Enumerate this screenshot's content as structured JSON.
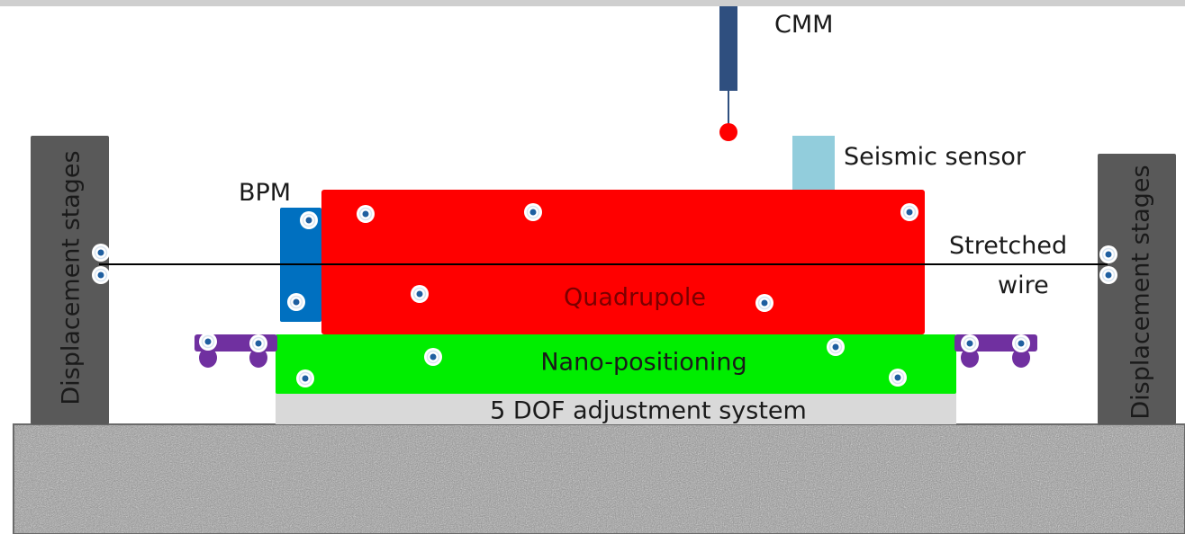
{
  "labels": {
    "cmm": "CMM",
    "seismic_sensor": "Seismic sensor",
    "bpm": "BPM",
    "quadrupole": "Quadrupole",
    "nano_positioning": "Nano-positioning",
    "adjustment_system": "5 DOF adjustment system",
    "stretched_wire_line1": "Stretched",
    "stretched_wire_line2": "wire",
    "displacement_stages_left": "Displacement stages",
    "displacement_stages_right": "Displacement stages"
  },
  "colors": {
    "quadrupole": "#ff0000",
    "nano_positioning": "#00ee00",
    "adjustment_system": "#d9d9d9",
    "bpm": "#0070c0",
    "seismic_sensor": "#92cddc",
    "stage": "#595959",
    "cmm_probe": "#2f4f7f",
    "cmm_tip": "#ff0000",
    "clamp": "#7030a0",
    "marker_ring": "#1f5fa0",
    "floor": "#8a8a8a"
  }
}
